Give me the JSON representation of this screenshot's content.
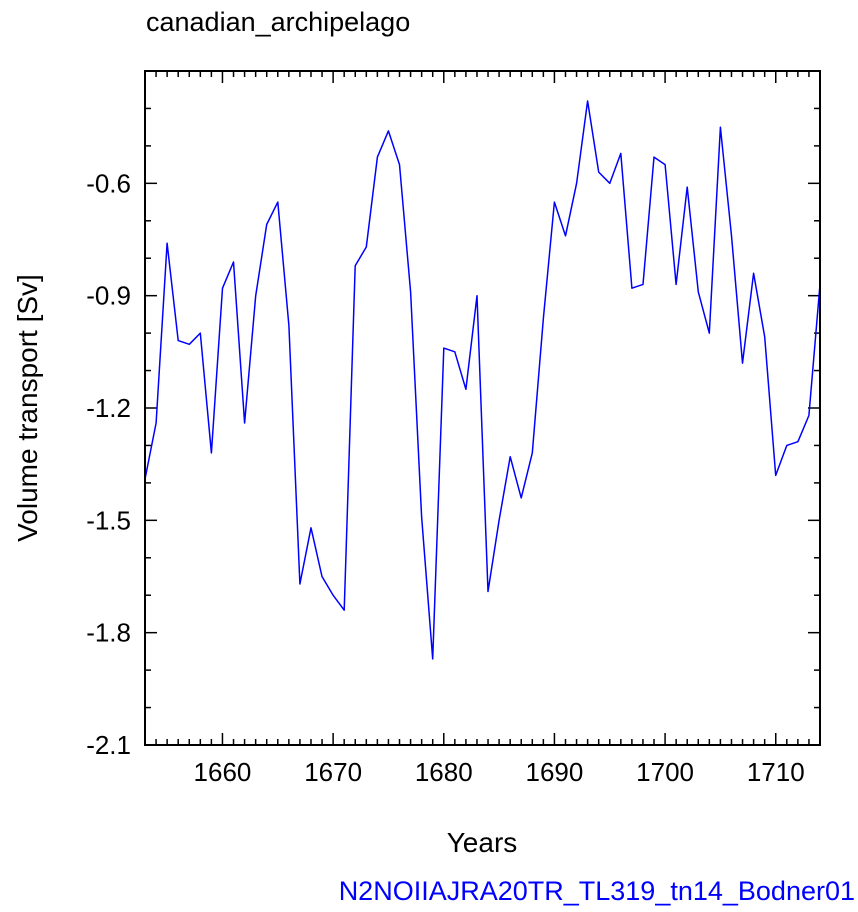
{
  "chart_data": {
    "type": "line",
    "title": "canadian_archipelago",
    "xlabel": "Years",
    "ylabel": "Volume transport [Sv]",
    "xlim": [
      1653,
      1714
    ],
    "ylim": [
      -2.1,
      -0.3
    ],
    "xticks": [
      1660,
      1670,
      1680,
      1690,
      1700,
      1710
    ],
    "xtick_labels": [
      "1660",
      "1670",
      "1680",
      "1690",
      "1700",
      "1710"
    ],
    "yticks": [
      -2.1,
      -1.8,
      -1.5,
      -1.2,
      -0.9,
      -0.6
    ],
    "ytick_labels": [
      "-2.1",
      "-1.8",
      "-1.5",
      "-1.2",
      "-0.9",
      "-0.6"
    ],
    "grid": false,
    "line_color": "#0000ff",
    "series": [
      {
        "x": [
          1653,
          1654,
          1655,
          1656,
          1657,
          1658,
          1659,
          1660,
          1661,
          1662,
          1663,
          1664,
          1665,
          1666,
          1667,
          1668,
          1669,
          1670,
          1671,
          1672,
          1673,
          1674,
          1675,
          1676,
          1677,
          1678,
          1679,
          1680,
          1681,
          1682,
          1683,
          1684,
          1685,
          1686,
          1687,
          1688,
          1689,
          1690,
          1691,
          1692,
          1693,
          1694,
          1695,
          1696,
          1697,
          1698,
          1699,
          1700,
          1701,
          1702,
          1703,
          1704,
          1705,
          1706,
          1707,
          1708,
          1709,
          1710,
          1711,
          1712,
          1713,
          1714
        ],
        "values": [
          -1.39,
          -1.24,
          -0.76,
          -1.02,
          -1.03,
          -1.0,
          -1.32,
          -0.88,
          -0.81,
          -1.24,
          -0.9,
          -0.71,
          -0.65,
          -0.98,
          -1.67,
          -1.52,
          -1.65,
          -1.7,
          -1.74,
          -0.82,
          -0.77,
          -0.53,
          -0.46,
          -0.55,
          -0.89,
          -1.49,
          -1.87,
          -1.04,
          -1.05,
          -1.15,
          -0.9,
          -1.69,
          -1.5,
          -1.33,
          -1.44,
          -1.32,
          -0.96,
          -0.65,
          -0.74,
          -0.6,
          -0.38,
          -0.57,
          -0.6,
          -0.52,
          -0.88,
          -0.87,
          -0.53,
          -0.55,
          -0.87,
          -0.61,
          -0.89,
          -1.0,
          -0.45,
          -0.74,
          -1.08,
          -0.84,
          -1.01,
          -1.38,
          -1.3,
          -1.29,
          -1.22,
          -0.87
        ]
      }
    ]
  },
  "credit": {
    "text": "N2NOIIAJRA20TR_TL319_tn14_Bodner01",
    "color": "#0000ff"
  }
}
